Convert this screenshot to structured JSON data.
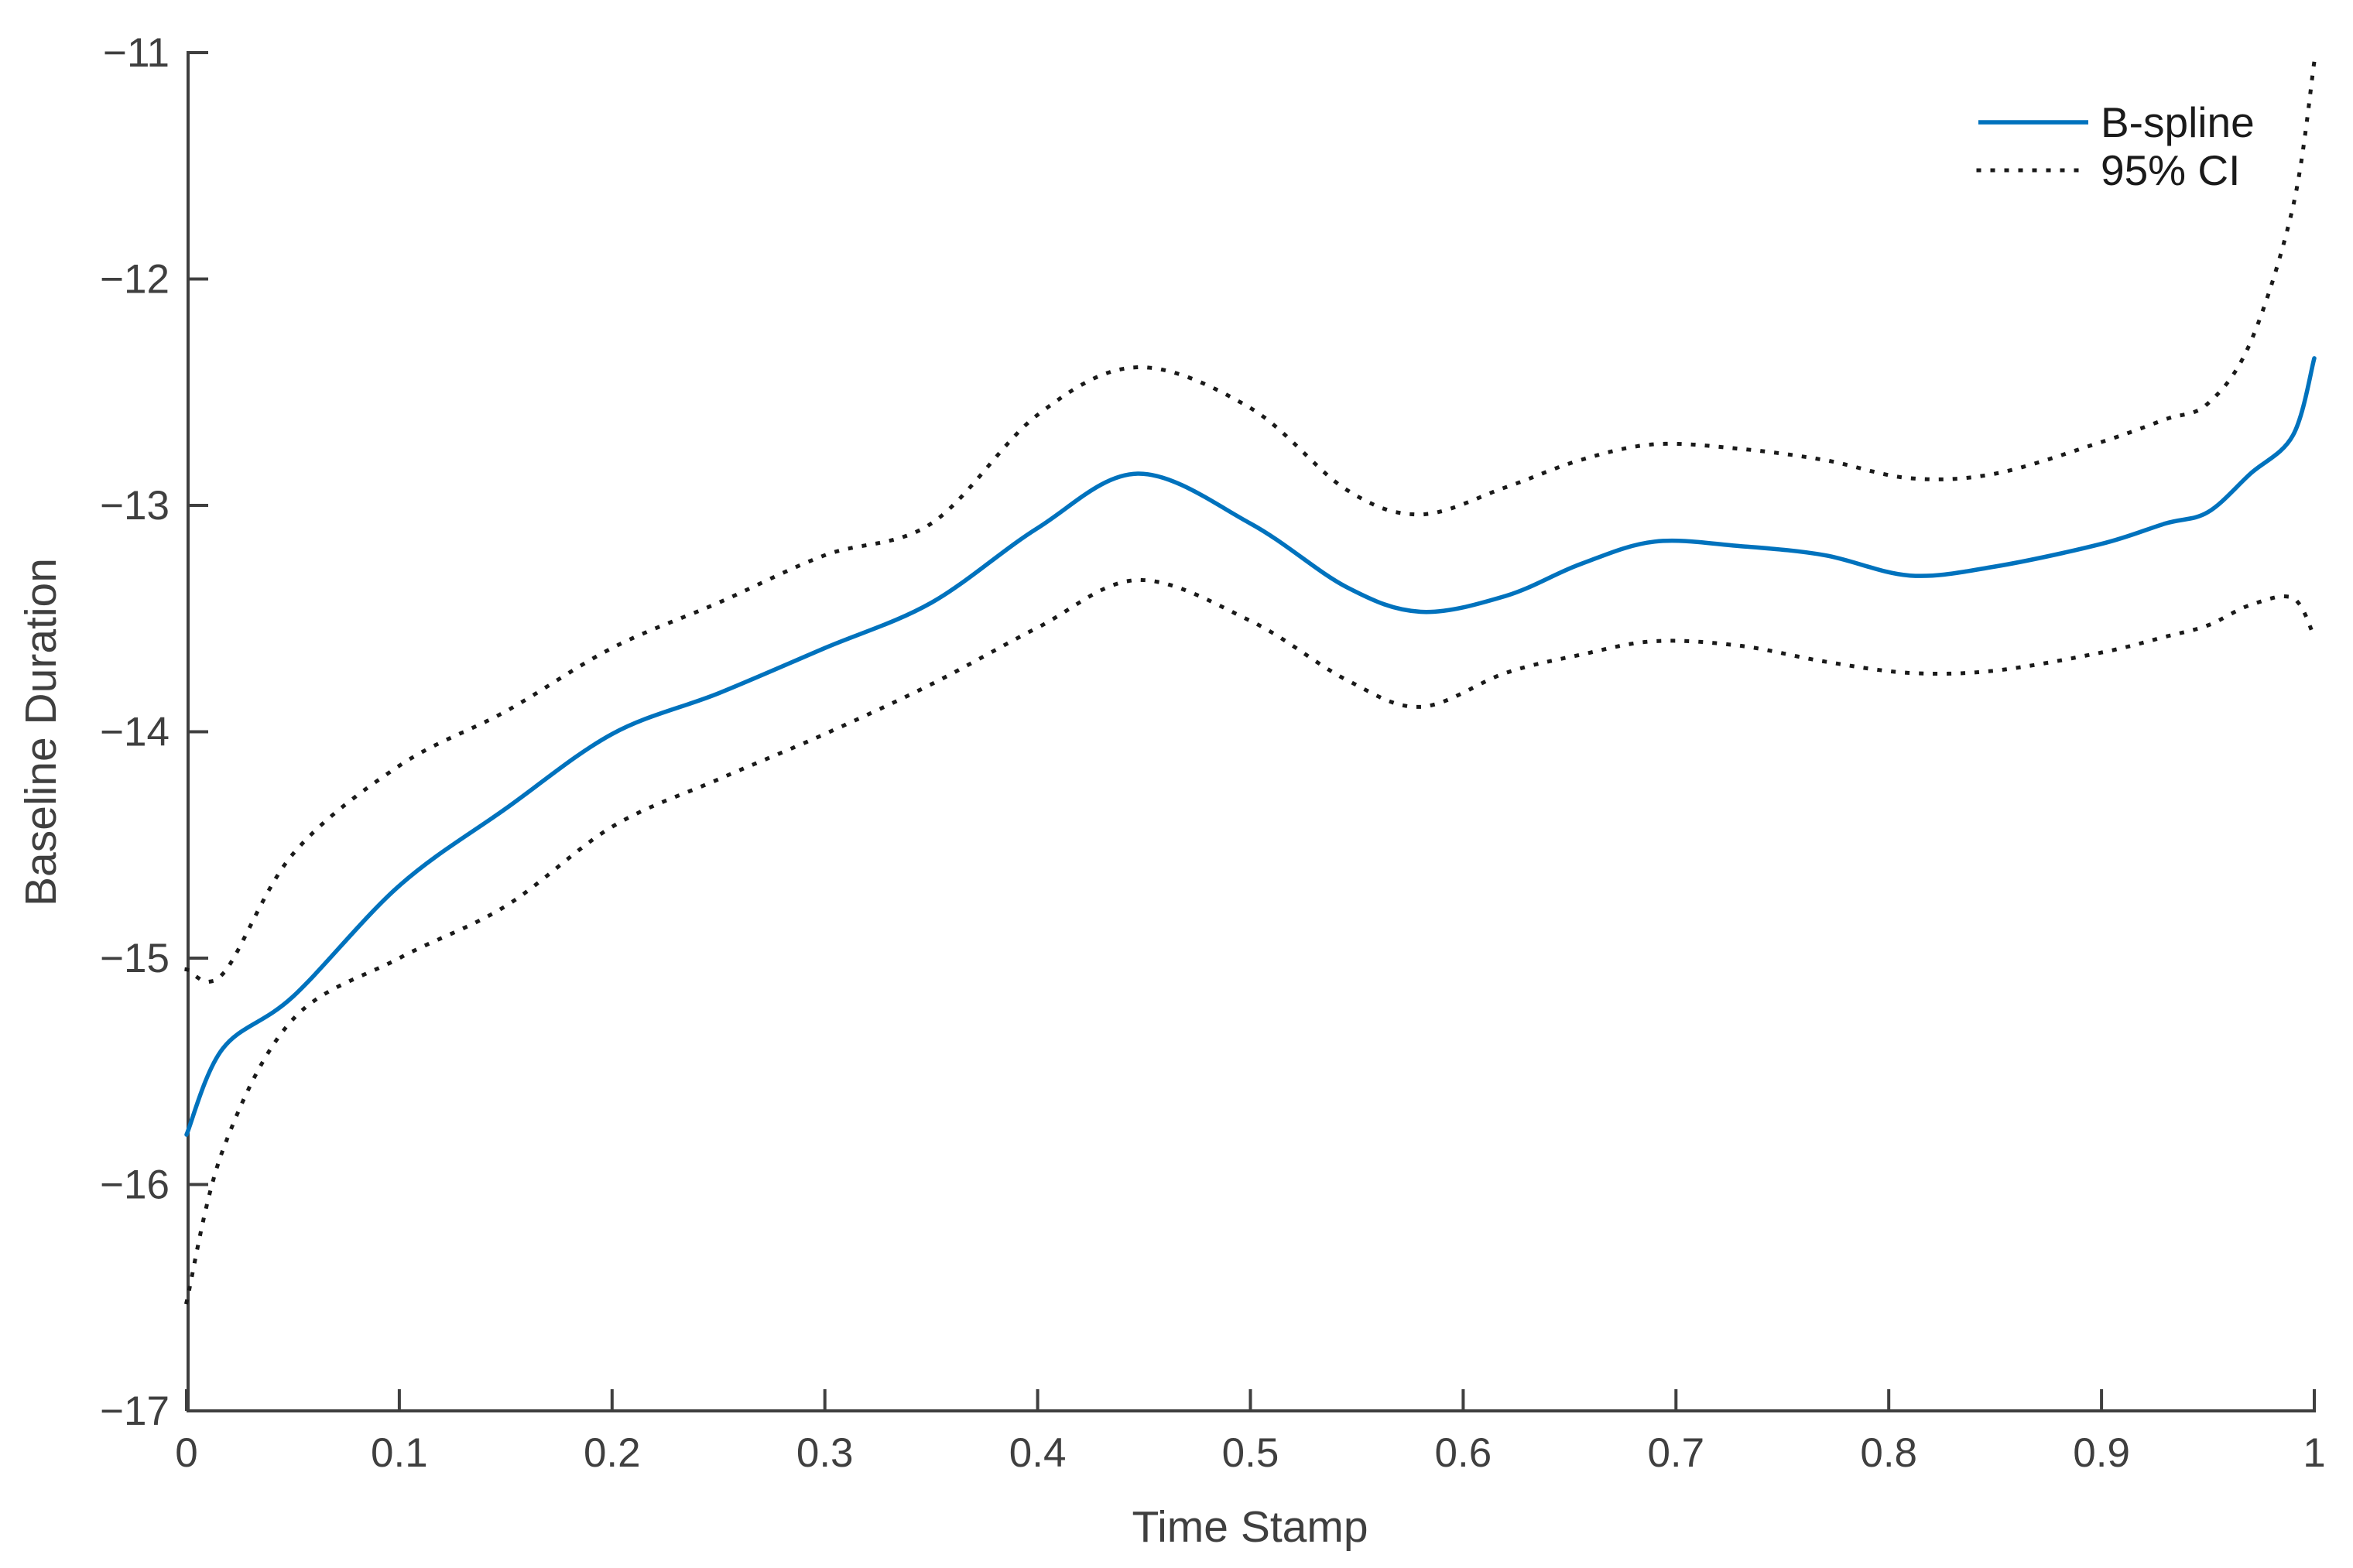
{
  "figure": {
    "background": "#ffffff",
    "axis_color": "#3f3f3f",
    "tick_text_color": "#3f3f3f",
    "label_text_color": "#3f3f3f",
    "legend_text_color": "#1a1a1a"
  },
  "chart_data": {
    "type": "line",
    "title": "",
    "xlabel": "Time Stamp",
    "ylabel": "Baseline Duration",
    "xlim": [
      0,
      1
    ],
    "ylim": [
      -17,
      -11
    ],
    "grid": false,
    "x_ticks": {
      "values": [
        0,
        0.1,
        0.2,
        0.3,
        0.4,
        0.5,
        0.6,
        0.7,
        0.8,
        0.9,
        1
      ],
      "labels": [
        "0",
        "0.1",
        "0.2",
        "0.3",
        "0.4",
        "0.5",
        "0.6",
        "0.7",
        "0.8",
        "0.9",
        "1"
      ]
    },
    "y_ticks": {
      "values": [
        -17,
        -16,
        -15,
        -14,
        -13,
        -12,
        -11
      ],
      "labels": [
        "−17",
        "−16",
        "−15",
        "−14",
        "−13",
        "−12",
        "−11"
      ]
    },
    "legend": {
      "position": "top-right",
      "items": [
        {
          "label": "B-spline",
          "style": "solid",
          "color": "#0072BD"
        },
        {
          "label": "95% CI",
          "style": "dotted",
          "color": "#1a1a1a"
        }
      ]
    },
    "x": [
      0,
      0.017,
      0.05,
      0.1,
      0.15,
      0.2,
      0.25,
      0.3,
      0.35,
      0.4,
      0.447,
      0.5,
      0.545,
      0.58,
      0.62,
      0.655,
      0.69,
      0.73,
      0.77,
      0.81,
      0.85,
      0.9,
      0.93,
      0.95,
      0.97,
      0.99,
      1.0
    ],
    "series": [
      {
        "name": "B-spline",
        "style": "solid",
        "color": "#0072BD",
        "width": 5.5,
        "values": [
          -15.78,
          -15.4,
          -15.17,
          -14.68,
          -14.34,
          -14.01,
          -13.83,
          -13.63,
          -13.43,
          -13.1,
          -12.86,
          -13.08,
          -13.36,
          -13.47,
          -13.4,
          -13.26,
          -13.16,
          -13.18,
          -13.22,
          -13.31,
          -13.27,
          -13.17,
          -13.08,
          -13.03,
          -12.86,
          -12.69,
          -12.35
        ]
      },
      {
        "name": "95% CI upper",
        "style": "dotted",
        "color": "#1a1a1a",
        "width": 5,
        "values": [
          -15.05,
          -15.07,
          -14.54,
          -14.15,
          -13.91,
          -13.63,
          -13.43,
          -13.22,
          -13.08,
          -12.6,
          -12.39,
          -12.57,
          -12.93,
          -13.04,
          -12.92,
          -12.8,
          -12.73,
          -12.75,
          -12.8,
          -12.88,
          -12.86,
          -12.72,
          -12.62,
          -12.55,
          -12.28,
          -11.68,
          -11.04
        ]
      },
      {
        "name": "95% CI lower",
        "style": "dotted",
        "color": "#1a1a1a",
        "width": 5,
        "values": [
          -16.52,
          -15.85,
          -15.27,
          -15.0,
          -14.77,
          -14.42,
          -14.21,
          -14.01,
          -13.79,
          -13.54,
          -13.33,
          -13.51,
          -13.77,
          -13.89,
          -13.74,
          -13.66,
          -13.6,
          -13.62,
          -13.69,
          -13.74,
          -13.73,
          -13.65,
          -13.58,
          -13.53,
          -13.44,
          -13.41,
          -13.58
        ]
      }
    ]
  }
}
